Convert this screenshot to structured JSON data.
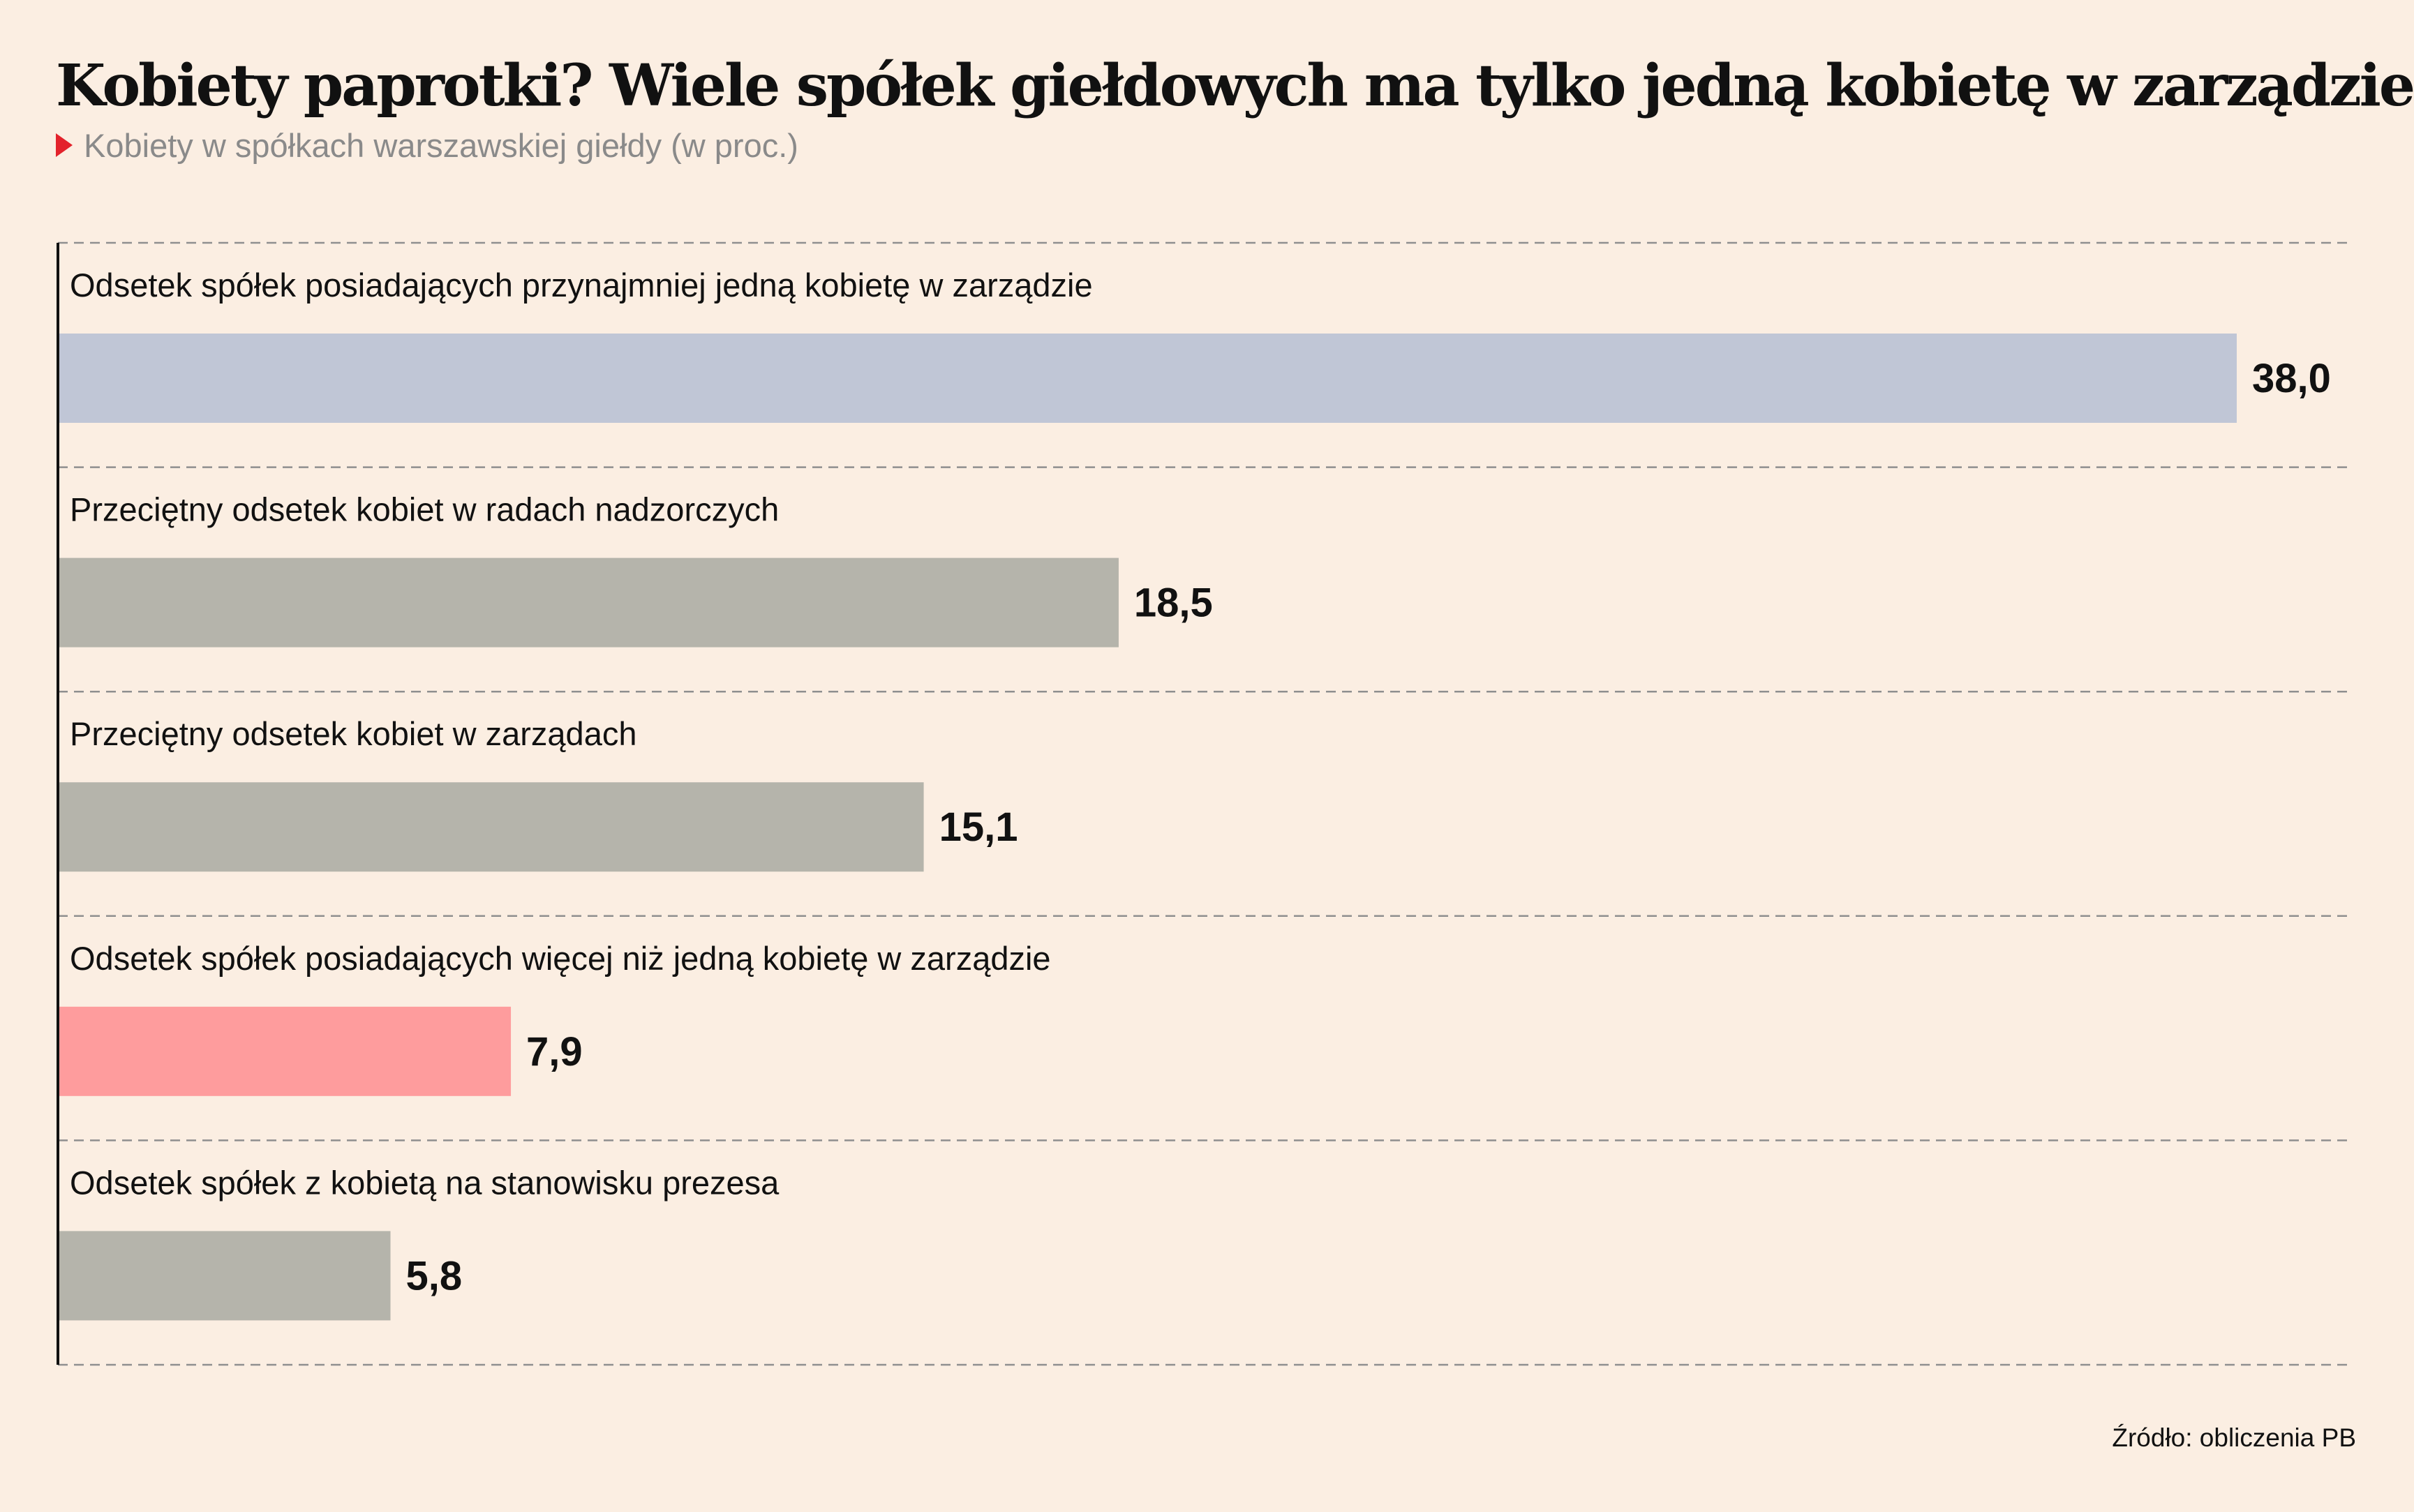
{
  "header": {
    "title": "Kobiety paprotki? Wiele spółek giełdowych ma tylko jedną kobietę w zarządzie",
    "subtitle": "Kobiety w spółkach warszawskiej giełdy (w proc.)"
  },
  "footer": {
    "source": "Źródło: obliczenia PB"
  },
  "chart_data": {
    "type": "bar",
    "orientation": "horizontal",
    "title": "Kobiety paprotki? Wiele spółek giełdowych ma tylko jedną kobietę w zarządzie",
    "subtitle": "Kobiety w spółkach warszawskiej giełdy (w proc.)",
    "categories": [
      "Odsetek spółek posiadających przynajmniej jedną kobietę w zarządzie",
      "Przeciętny odsetek kobiet w radach nadzorczych",
      "Przeciętny odsetek kobiet w zarządach",
      "Odsetek spółek posiadających więcej niż jedną kobietę w zarządzie",
      "Odsetek spółek z kobietą na stanowisku prezesa"
    ],
    "values": [
      38.0,
      18.5,
      15.1,
      7.9,
      5.8
    ],
    "value_labels": [
      "38,0",
      "18,5",
      "15,1",
      "7,9",
      "5,8"
    ],
    "colors": [
      "#c0c6d6",
      "#b5b4ab",
      "#b5b4ab",
      "#fe9c9d",
      "#b5b4ab"
    ],
    "xlim": [
      0,
      38.0
    ],
    "grid": "dashed horizontal separators",
    "legend": "none",
    "source": "Źródło: obliczenia PB"
  }
}
